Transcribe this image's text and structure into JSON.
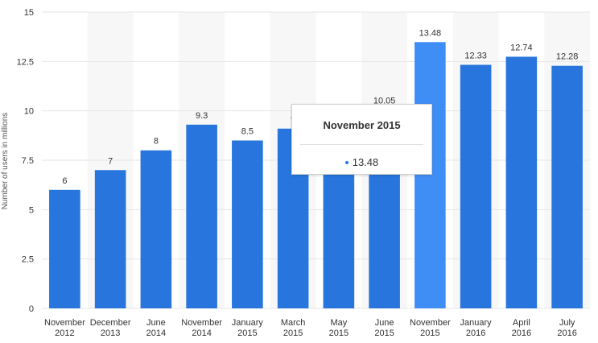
{
  "chart_data": {
    "type": "bar",
    "categories": [
      [
        "November",
        "2012"
      ],
      [
        "December",
        "2013"
      ],
      [
        "June",
        "2014"
      ],
      [
        "November",
        "2014"
      ],
      [
        "January",
        "2015"
      ],
      [
        "March",
        "2015"
      ],
      [
        "May",
        "2015"
      ],
      [
        "June",
        "2015"
      ],
      [
        "November",
        "2015"
      ],
      [
        "January",
        "2016"
      ],
      [
        "April",
        "2016"
      ],
      [
        "July",
        "2016"
      ]
    ],
    "values": [
      6,
      7,
      8,
      9.3,
      8.5,
      9.1,
      9.6,
      10.05,
      13.48,
      12.33,
      12.74,
      12.28
    ],
    "data_labels": [
      "6",
      "7",
      "8",
      "9.3",
      "8.5",
      "9",
      "",
      "10.05",
      "13.48",
      "12.33",
      "12.74",
      "12.28"
    ],
    "ylabel": "Number of users in millions",
    "ylim": [
      0,
      15
    ],
    "yticks": [
      0,
      2.5,
      5,
      7.5,
      10,
      12.5,
      15
    ],
    "ytick_labels": [
      "0",
      "2.5",
      "5",
      "7.5",
      "10",
      "12.5",
      "15"
    ],
    "grid": true,
    "highlight_index": 8
  },
  "colors": {
    "bar": "#2876dd",
    "bar_highlight": "#3f8ef5",
    "band": "#f7f7f7",
    "grid": "#e6e6e6"
  },
  "tooltip": {
    "title": "November 2015",
    "value": "13.48"
  }
}
